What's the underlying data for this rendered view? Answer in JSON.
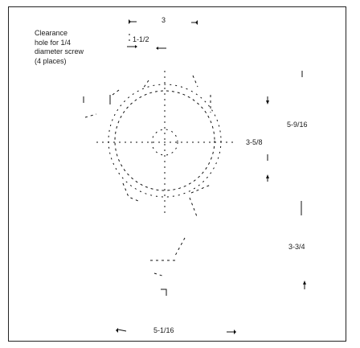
{
  "note": {
    "lines": [
      "Clearance",
      "hole for 1/4",
      "diameter screw",
      "(4 places)"
    ]
  },
  "dimensions": {
    "top_overall": "3",
    "hole_spacing": "1-1/2",
    "right_height": "5-9/16",
    "center_height": "3-5/8",
    "lower_right": "3-3/4",
    "bottom_width": "5-1/16"
  }
}
